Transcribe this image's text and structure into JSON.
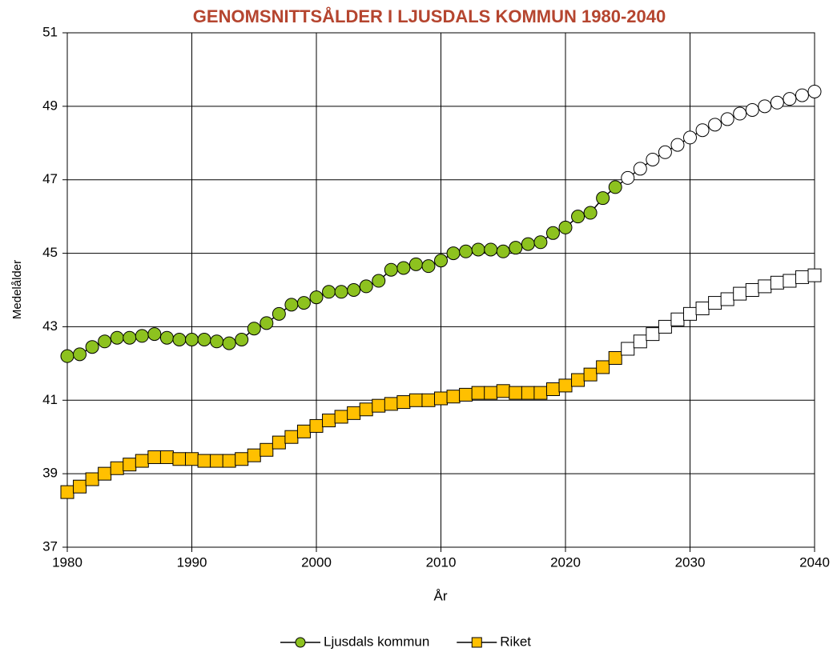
{
  "chart_data": {
    "type": "line",
    "title": "GENOMSNITTSÅLDER I LJUSDALS KOMMUN 1980-2040",
    "title_color": "#b5452f",
    "x_label": "År",
    "y_label": "Medelålder",
    "x": [
      1980,
      1981,
      1982,
      1983,
      1984,
      1985,
      1986,
      1987,
      1988,
      1989,
      1990,
      1991,
      1992,
      1993,
      1994,
      1995,
      1996,
      1997,
      1998,
      1999,
      2000,
      2001,
      2002,
      2003,
      2004,
      2005,
      2006,
      2007,
      2008,
      2009,
      2010,
      2011,
      2012,
      2013,
      2014,
      2015,
      2016,
      2017,
      2018,
      2019,
      2020,
      2021,
      2022,
      2023,
      2024,
      2025,
      2026,
      2027,
      2028,
      2029,
      2030,
      2031,
      2032,
      2033,
      2034,
      2035,
      2036,
      2037,
      2038,
      2039,
      2040
    ],
    "forecast_from": 2025,
    "series": [
      {
        "name": "Ljusdals kommun",
        "color": "#8dc21f",
        "marker": "circle",
        "values": [
          42.2,
          42.25,
          42.45,
          42.6,
          42.7,
          42.7,
          42.75,
          42.8,
          42.7,
          42.65,
          42.65,
          42.65,
          42.6,
          42.55,
          42.65,
          42.95,
          43.1,
          43.35,
          43.6,
          43.65,
          43.8,
          43.95,
          43.95,
          44.0,
          44.1,
          44.25,
          44.55,
          44.6,
          44.7,
          44.65,
          44.8,
          45.0,
          45.05,
          45.1,
          45.1,
          45.05,
          45.15,
          45.25,
          45.3,
          45.55,
          45.7,
          46.0,
          46.1,
          46.5,
          46.8,
          47.05,
          47.3,
          47.55,
          47.75,
          47.95,
          48.15,
          48.35,
          48.5,
          48.65,
          48.8,
          48.9,
          49.0,
          49.1,
          49.2,
          49.3,
          49.4
        ]
      },
      {
        "name": "Riket",
        "color": "#ffc000",
        "marker": "square",
        "values": [
          38.5,
          38.65,
          38.85,
          39.0,
          39.15,
          39.25,
          39.35,
          39.45,
          39.45,
          39.4,
          39.4,
          39.35,
          39.35,
          39.35,
          39.4,
          39.5,
          39.65,
          39.85,
          40.0,
          40.15,
          40.3,
          40.45,
          40.55,
          40.65,
          40.75,
          40.85,
          40.9,
          40.95,
          41.0,
          41.0,
          41.05,
          41.1,
          41.15,
          41.2,
          41.2,
          41.25,
          41.2,
          41.2,
          41.2,
          41.3,
          41.4,
          41.55,
          41.7,
          41.9,
          42.15,
          42.4,
          42.6,
          42.8,
          43.0,
          43.2,
          43.35,
          43.5,
          43.65,
          43.75,
          43.9,
          44.0,
          44.1,
          44.2,
          44.25,
          44.35,
          44.4
        ]
      }
    ],
    "xlim": [
      1980,
      2040
    ],
    "xticks": [
      1980,
      1990,
      2000,
      2010,
      2020,
      2030,
      2040
    ],
    "ylim": [
      37,
      51
    ],
    "yticks": [
      37,
      39,
      41,
      43,
      45,
      47,
      49,
      51
    ],
    "grid": true,
    "legend": "bottom"
  }
}
